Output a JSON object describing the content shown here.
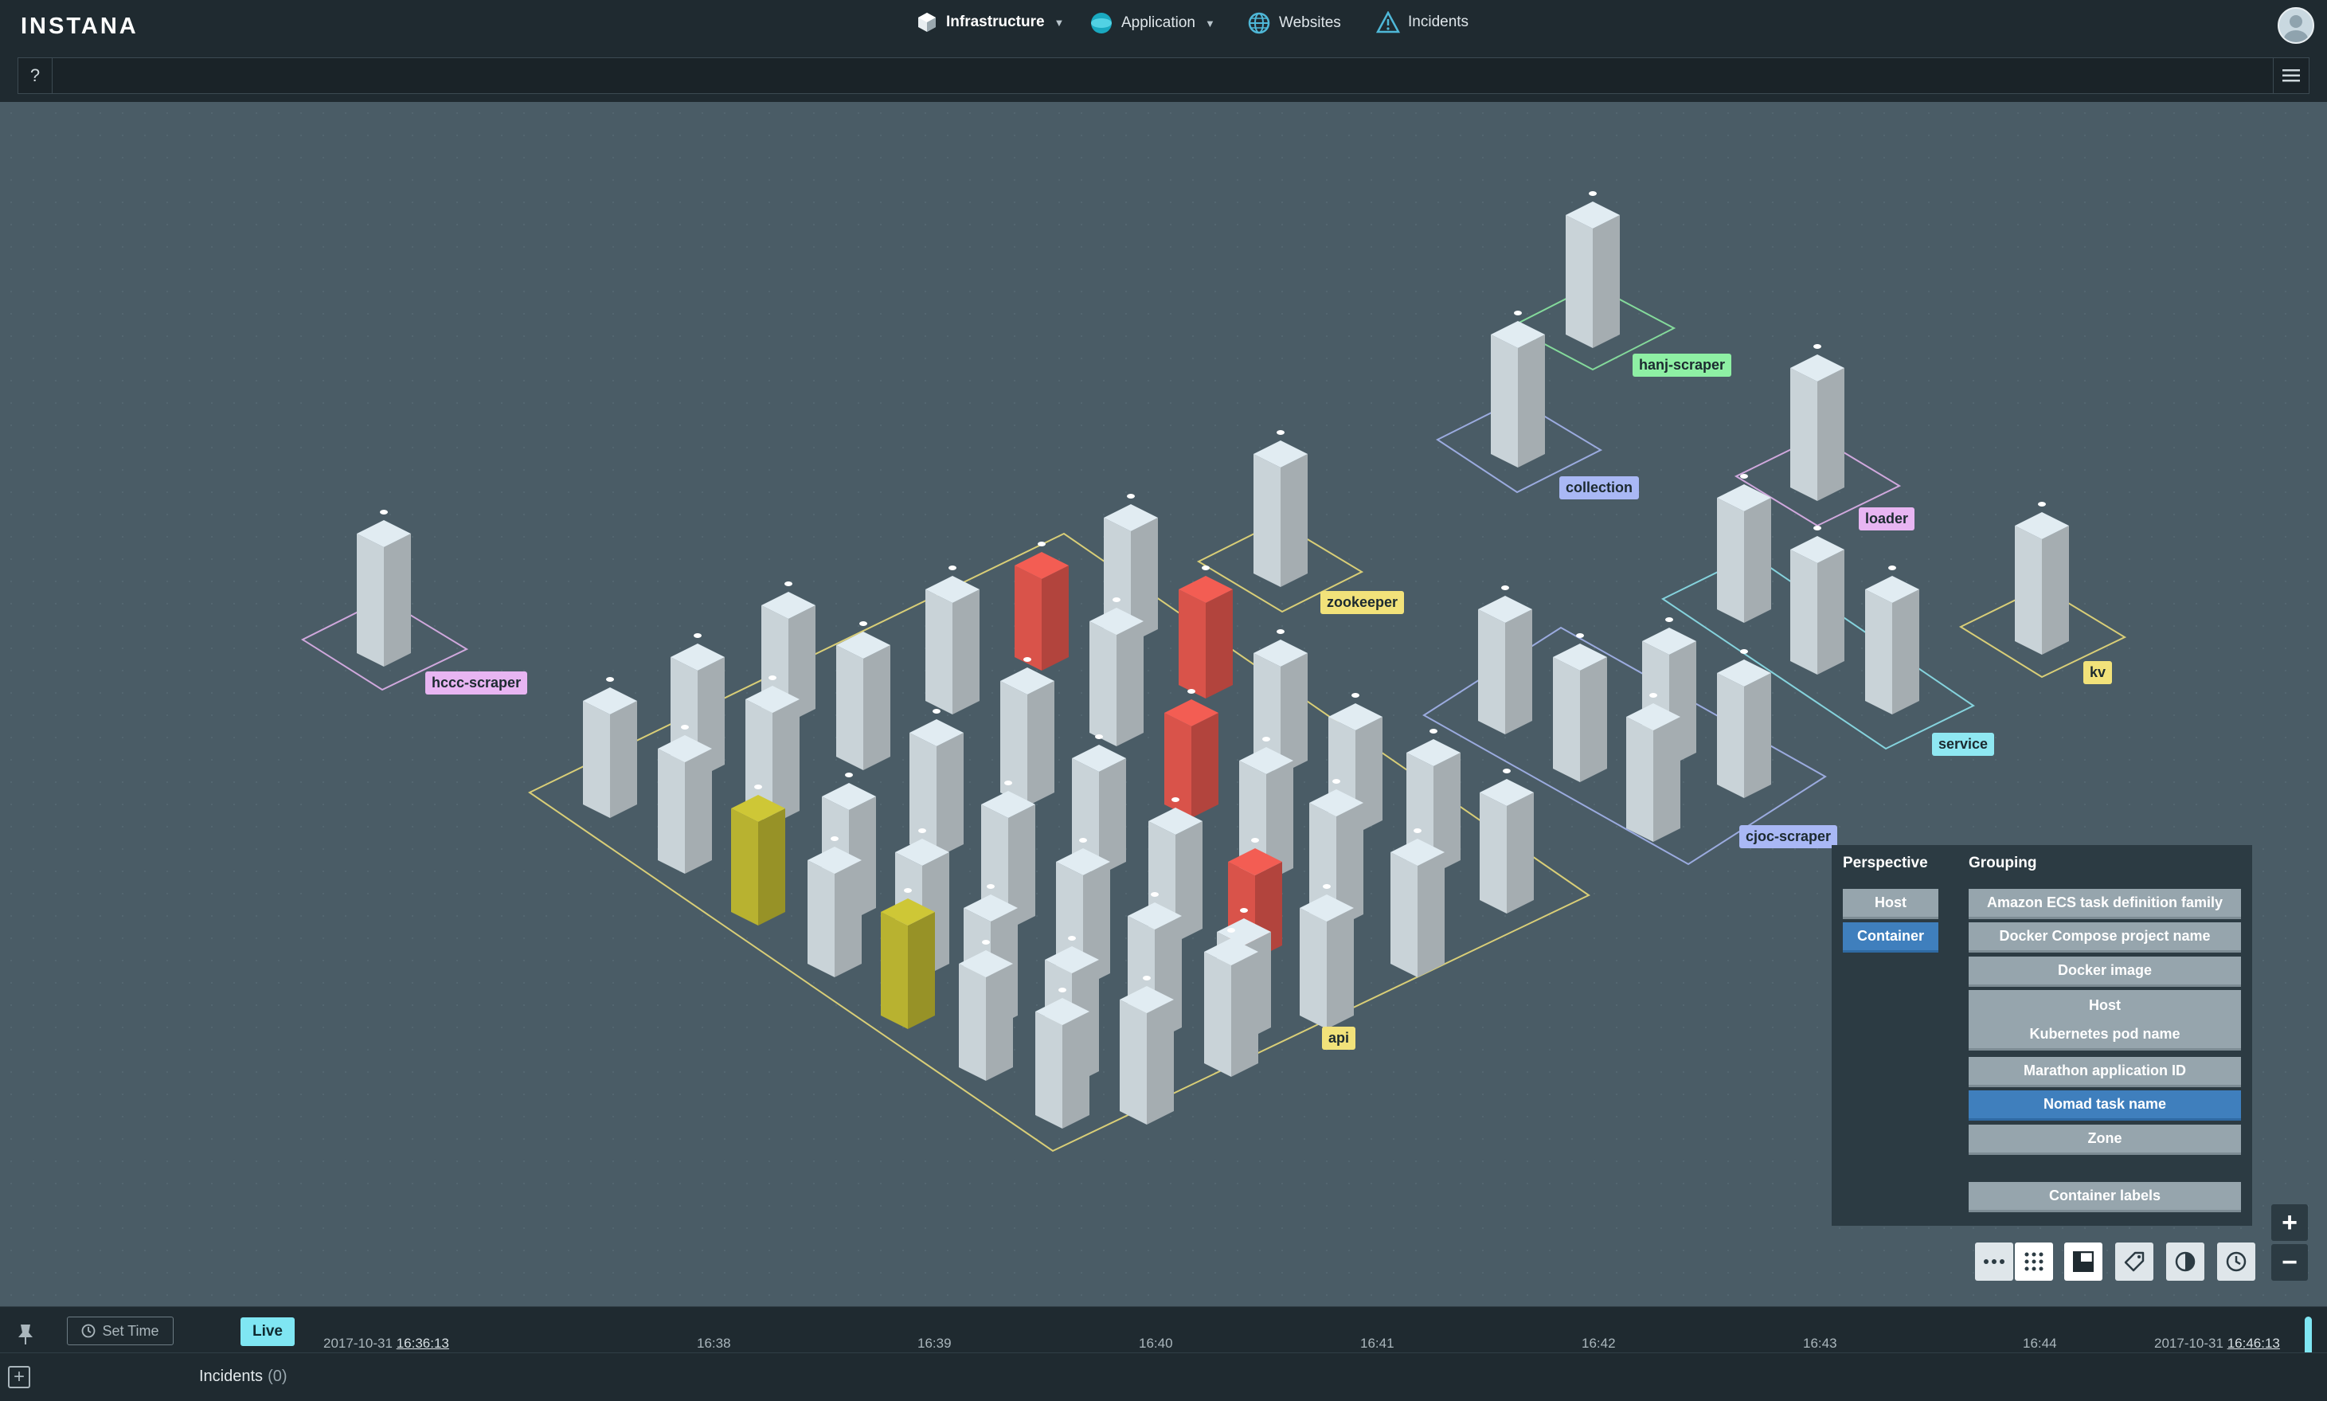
{
  "app": {
    "logo": "INSTANA"
  },
  "nav": {
    "infrastructure": "Infrastructure",
    "application": "Application",
    "websites": "Websites",
    "incidents": "Incidents"
  },
  "search": {
    "help": "?",
    "value": "",
    "placeholder": ""
  },
  "groups": {
    "hccc_scraper": "hccc-scraper",
    "zookeeper": "zookeeper",
    "hanj_scraper": "hanj-scraper",
    "collection": "collection",
    "loader": "loader",
    "kv": "kv",
    "service": "service",
    "cjoc_scraper": "cjoc-scraper",
    "api": "api"
  },
  "group_colors": {
    "hccc_scraper": "#e8b5f2",
    "zookeeper": "#f2e27a",
    "hanj_scraper": "#8ef0a4",
    "collection": "#a9b8f5",
    "loader": "#e8b5f2",
    "kv": "#f2e27a",
    "service": "#8fe8f2",
    "cjoc_scraper": "#a9b8f5",
    "api": "#f2e27a"
  },
  "status_colors": {
    "ok": "#c9d3d8",
    "warning": "#b8b230",
    "critical": "#d9534a"
  },
  "panel": {
    "perspective_title": "Perspective",
    "grouping_title": "Grouping",
    "perspective": [
      "Host",
      "Container"
    ],
    "perspective_selected": "Container",
    "grouping": [
      "Amazon ECS task definition family",
      "Docker Compose project name",
      "Docker image",
      "Host",
      "Kubernetes pod name",
      "Marathon application ID",
      "Nomad task name",
      "Zone"
    ],
    "grouping_selected": "Nomad task name",
    "container_labels": "Container labels"
  },
  "toolbar_icons": [
    "more-icon",
    "grid-icon",
    "layout-icon",
    "tag-icon",
    "contrast-icon",
    "clock-icon"
  ],
  "zoom": {
    "in": "+",
    "out": "−"
  },
  "timeline": {
    "set_time": "Set Time",
    "live": "Live",
    "start_date": "2017-10-31",
    "start_time": "16:36:13",
    "end_date": "2017-10-31",
    "end_time": "16:46:13",
    "ticks": [
      "16:38",
      "16:39",
      "16:40",
      "16:41",
      "16:42",
      "16:43",
      "16:44"
    ]
  },
  "incidents": {
    "label": "Incidents",
    "count": "(0)"
  }
}
